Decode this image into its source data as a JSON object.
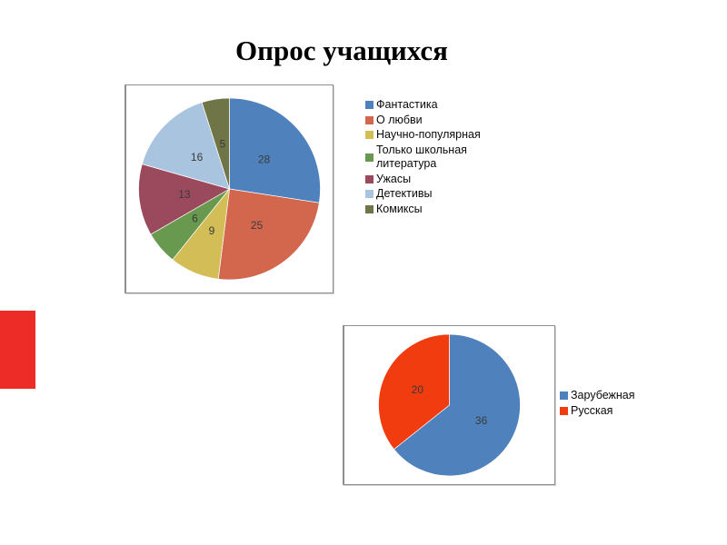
{
  "title": "Опрос учащихся",
  "chart_data": [
    {
      "type": "pie",
      "title": "",
      "categories": [
        "Фантастика",
        "О любви",
        "Научно-популярная",
        "Только школьная литература",
        "Ужасы",
        "Детективы",
        "Комиксы"
      ],
      "values": [
        28,
        25,
        9,
        6,
        13,
        16,
        5
      ],
      "colors": [
        "#4F81BD",
        "#D2674E",
        "#D2BD57",
        "#68994E",
        "#9B4A5E",
        "#A9C4DF",
        "#6F7547"
      ],
      "data_labels": "values",
      "legend_position": "right",
      "start_angle_deg": 0,
      "direction": "clockwise"
    },
    {
      "type": "pie",
      "title": "",
      "categories": [
        "Зарубежная",
        "Русская"
      ],
      "values": [
        36,
        20
      ],
      "colors": [
        "#4F81BD",
        "#F03C0F"
      ],
      "data_labels": "values",
      "legend_position": "right",
      "start_angle_deg": 0,
      "direction": "clockwise"
    }
  ],
  "decor": {
    "red_rect_color": "#ED2B27"
  },
  "style": {
    "pie_label_color": "#3A3A3A"
  }
}
